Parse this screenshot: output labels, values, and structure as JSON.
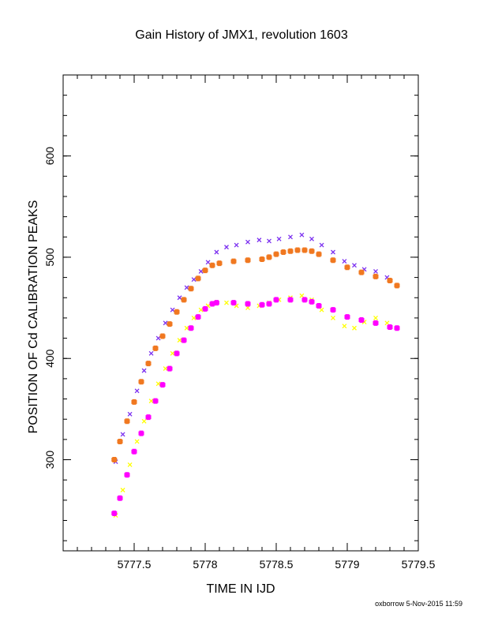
{
  "chart_data": {
    "type": "scatter",
    "title": "Gain History of JMX1, revolution 1603",
    "xlabel": "TIME IN IJD",
    "ylabel": "POSITION OF Cd CALIBRATION PEAKS",
    "xlim": [
      5777.0,
      5779.5
    ],
    "ylim": [
      210,
      680
    ],
    "xticks": [
      5777.5,
      5778,
      5778.5,
      5779,
      5779.5
    ],
    "xtick_labels": [
      "5777.5",
      "5778",
      "5778.5",
      "5779",
      "5779.5"
    ],
    "yticks": [
      300,
      400,
      500,
      600
    ],
    "ytick_labels": [
      "300",
      "400",
      "500",
      "600"
    ],
    "grid": false,
    "series": [
      {
        "color": "#7b2ff0",
        "marker": "x",
        "x": [
          5777.37,
          5777.42,
          5777.47,
          5777.52,
          5777.57,
          5777.62,
          5777.67,
          5777.72,
          5777.77,
          5777.82,
          5777.87,
          5777.92,
          5777.97,
          5778.02,
          5778.08,
          5778.15,
          5778.22,
          5778.3,
          5778.38,
          5778.45,
          5778.52,
          5778.6,
          5778.68,
          5778.75,
          5778.82,
          5778.9,
          5778.98,
          5779.05,
          5779.12,
          5779.2,
          5779.28,
          5779.35
        ],
        "y": [
          298,
          325,
          345,
          368,
          388,
          405,
          420,
          435,
          448,
          460,
          470,
          478,
          486,
          495,
          505,
          510,
          512,
          515,
          517,
          516,
          518,
          520,
          522,
          518,
          512,
          505,
          496,
          492,
          488,
          486,
          480,
          472
        ]
      },
      {
        "color": "#ffff00",
        "marker": "x",
        "x": [
          5777.37,
          5777.42,
          5777.47,
          5777.52,
          5777.57,
          5777.62,
          5777.67,
          5777.72,
          5777.77,
          5777.82,
          5777.87,
          5777.92,
          5777.97,
          5778.02,
          5778.08,
          5778.15,
          5778.22,
          5778.3,
          5778.38,
          5778.45,
          5778.52,
          5778.6,
          5778.68,
          5778.75,
          5778.82,
          5778.9,
          5778.98,
          5779.05,
          5779.12,
          5779.2,
          5779.28,
          5779.35
        ],
        "y": [
          245,
          270,
          295,
          318,
          338,
          358,
          375,
          390,
          405,
          418,
          430,
          440,
          448,
          452,
          455,
          455,
          452,
          450,
          452,
          455,
          458,
          460,
          462,
          458,
          448,
          440,
          432,
          430,
          436,
          440,
          435,
          430
        ]
      },
      {
        "color": "#f07820",
        "marker": "+",
        "x": [
          5777.36,
          5777.4,
          5777.45,
          5777.5,
          5777.55,
          5777.6,
          5777.65,
          5777.7,
          5777.75,
          5777.8,
          5777.85,
          5777.9,
          5777.95,
          5778.0,
          5778.05,
          5778.1,
          5778.2,
          5778.3,
          5778.4,
          5778.45,
          5778.5,
          5778.55,
          5778.6,
          5778.65,
          5778.7,
          5778.75,
          5778.8,
          5778.9,
          5779.0,
          5779.1,
          5779.2,
          5779.3,
          5779.35
        ],
        "y": [
          300,
          318,
          338,
          357,
          377,
          395,
          410,
          422,
          434,
          446,
          458,
          469,
          479,
          487,
          492,
          494,
          496,
          497,
          498,
          500,
          503,
          505,
          506,
          507,
          507,
          506,
          503,
          497,
          490,
          485,
          481,
          477,
          472
        ]
      },
      {
        "color": "#ff00ff",
        "marker": "+",
        "x": [
          5777.36,
          5777.4,
          5777.45,
          5777.5,
          5777.55,
          5777.6,
          5777.65,
          5777.7,
          5777.75,
          5777.8,
          5777.85,
          5777.9,
          5777.95,
          5778.0,
          5778.05,
          5778.08,
          5778.2,
          5778.3,
          5778.4,
          5778.45,
          5778.5,
          5778.6,
          5778.7,
          5778.75,
          5778.8,
          5778.9,
          5779.0,
          5779.1,
          5779.2,
          5779.3,
          5779.35
        ],
        "y": [
          247,
          262,
          285,
          308,
          326,
          342,
          358,
          374,
          390,
          405,
          418,
          430,
          441,
          449,
          454,
          455,
          455,
          454,
          453,
          454,
          458,
          458,
          458,
          456,
          452,
          448,
          441,
          438,
          435,
          431,
          430
        ]
      }
    ]
  },
  "footer": {
    "credit": "oxborrow  5-Nov-2015 11:59"
  }
}
